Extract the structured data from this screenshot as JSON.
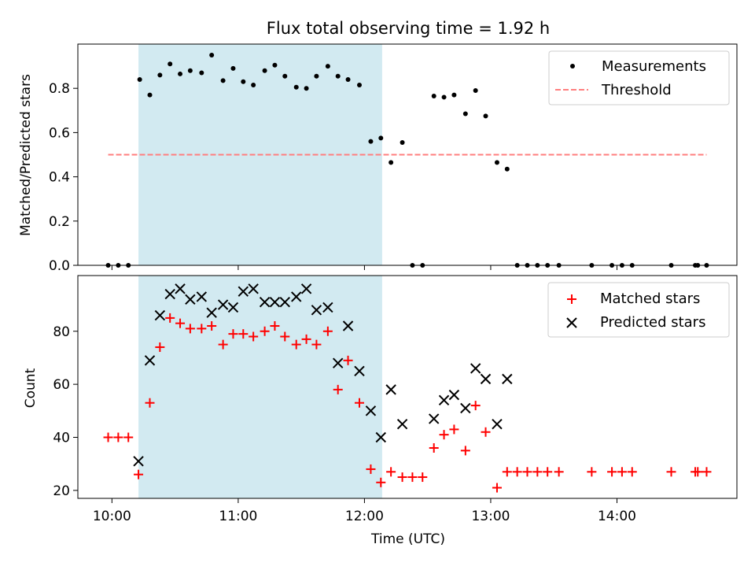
{
  "chart_data": [
    {
      "type": "scatter",
      "title": "Flux total observing time = 1.92 h",
      "ylabel": "Matched/Predicted stars",
      "xlabel": "",
      "ylim": [
        0,
        1.0
      ],
      "yticks": [
        0.0,
        0.2,
        0.4,
        0.6,
        0.8
      ],
      "ytick_labels": [
        "0.0",
        "0.2",
        "0.4",
        "0.6",
        "0.8"
      ],
      "xlim_hours": [
        9.73,
        14.95
      ],
      "xticks_hours": [
        10,
        11,
        12,
        13,
        14
      ],
      "grid": false,
      "legend_placement": "top-right",
      "shaded_interval_hours": [
        10.21,
        12.14
      ],
      "shade_color": "#add8e6",
      "series": [
        {
          "name": "Measurements",
          "marker": "dot",
          "color": "#000000",
          "points": [
            [
              9.97,
              0.0
            ],
            [
              10.05,
              0.0
            ],
            [
              10.13,
              0.0
            ],
            [
              10.22,
              0.84
            ],
            [
              10.3,
              0.77
            ],
            [
              10.38,
              0.86
            ],
            [
              10.46,
              0.91
            ],
            [
              10.54,
              0.865
            ],
            [
              10.62,
              0.88
            ],
            [
              10.71,
              0.87
            ],
            [
              10.79,
              0.95
            ],
            [
              10.88,
              0.835
            ],
            [
              10.96,
              0.89
            ],
            [
              11.04,
              0.83
            ],
            [
              11.12,
              0.815
            ],
            [
              11.21,
              0.88
            ],
            [
              11.29,
              0.905
            ],
            [
              11.37,
              0.855
            ],
            [
              11.46,
              0.805
            ],
            [
              11.54,
              0.8
            ],
            [
              11.62,
              0.855
            ],
            [
              11.71,
              0.9
            ],
            [
              11.79,
              0.855
            ],
            [
              11.87,
              0.84
            ],
            [
              11.96,
              0.815
            ],
            [
              12.05,
              0.56
            ],
            [
              12.13,
              0.575
            ],
            [
              12.21,
              0.465
            ],
            [
              12.3,
              0.555
            ],
            [
              12.38,
              0.0
            ],
            [
              12.46,
              0.0
            ],
            [
              12.55,
              0.765
            ],
            [
              12.63,
              0.76
            ],
            [
              12.71,
              0.77
            ],
            [
              12.8,
              0.685
            ],
            [
              12.88,
              0.79
            ],
            [
              12.96,
              0.675
            ],
            [
              13.05,
              0.465
            ],
            [
              13.13,
              0.435
            ],
            [
              13.21,
              0.0
            ],
            [
              13.29,
              0.0
            ],
            [
              13.37,
              0.0
            ],
            [
              13.45,
              0.0
            ],
            [
              13.54,
              0.0
            ],
            [
              13.8,
              0.0
            ],
            [
              13.96,
              0.0
            ],
            [
              14.04,
              0.0
            ],
            [
              14.12,
              0.0
            ],
            [
              14.43,
              0.0
            ],
            [
              14.62,
              0.0
            ],
            [
              14.64,
              0.0
            ],
            [
              14.71,
              0.0
            ]
          ]
        },
        {
          "name": "Threshold",
          "marker": "dashed-line",
          "color": "#ff7f7f",
          "x_hours": [
            9.97,
            14.71
          ],
          "value": 0.5
        }
      ]
    },
    {
      "type": "scatter",
      "title": "",
      "ylabel": "Count",
      "xlabel": "Time (UTC)",
      "ylim": [
        17,
        101
      ],
      "yticks": [
        20,
        40,
        60,
        80
      ],
      "ytick_labels": [
        "20",
        "40",
        "60",
        "80"
      ],
      "xlim_hours": [
        9.73,
        14.95
      ],
      "xticks_hours": [
        10,
        11,
        12,
        13,
        14
      ],
      "xtick_labels": [
        "10:00",
        "11:00",
        "12:00",
        "13:00",
        "14:00"
      ],
      "grid": false,
      "legend_placement": "top-right",
      "shaded_interval_hours": [
        10.21,
        12.14
      ],
      "shade_color": "#add8e6",
      "series": [
        {
          "name": "Matched stars",
          "marker": "plus",
          "color": "#ff0000",
          "points": [
            [
              9.97,
              40
            ],
            [
              10.05,
              40
            ],
            [
              10.13,
              40
            ],
            [
              10.21,
              26
            ],
            [
              10.3,
              53
            ],
            [
              10.38,
              74
            ],
            [
              10.46,
              85
            ],
            [
              10.54,
              83
            ],
            [
              10.62,
              81
            ],
            [
              10.71,
              81
            ],
            [
              10.79,
              82
            ],
            [
              10.88,
              75
            ],
            [
              10.96,
              79
            ],
            [
              11.04,
              79
            ],
            [
              11.12,
              78
            ],
            [
              11.21,
              80
            ],
            [
              11.29,
              82
            ],
            [
              11.37,
              78
            ],
            [
              11.46,
              75
            ],
            [
              11.54,
              77
            ],
            [
              11.62,
              75
            ],
            [
              11.71,
              80
            ],
            [
              11.79,
              58
            ],
            [
              11.87,
              69
            ],
            [
              11.96,
              53
            ],
            [
              12.05,
              28
            ],
            [
              12.13,
              23
            ],
            [
              12.21,
              27
            ],
            [
              12.3,
              25
            ],
            [
              12.38,
              25
            ],
            [
              12.46,
              25
            ],
            [
              12.55,
              36
            ],
            [
              12.63,
              41
            ],
            [
              12.71,
              43
            ],
            [
              12.8,
              35
            ],
            [
              12.88,
              52
            ],
            [
              12.96,
              42
            ],
            [
              13.05,
              21
            ],
            [
              13.13,
              27
            ],
            [
              13.21,
              27
            ],
            [
              13.29,
              27
            ],
            [
              13.37,
              27
            ],
            [
              13.45,
              27
            ],
            [
              13.54,
              27
            ],
            [
              13.8,
              27
            ],
            [
              13.96,
              27
            ],
            [
              14.04,
              27
            ],
            [
              14.12,
              27
            ],
            [
              14.43,
              27
            ],
            [
              14.62,
              27
            ],
            [
              14.64,
              27
            ],
            [
              14.71,
              27
            ]
          ]
        },
        {
          "name": "Predicted stars",
          "marker": "x",
          "color": "#000000",
          "points": [
            [
              10.21,
              31
            ],
            [
              10.3,
              69
            ],
            [
              10.38,
              86
            ],
            [
              10.46,
              94
            ],
            [
              10.54,
              96
            ],
            [
              10.62,
              92
            ],
            [
              10.71,
              93
            ],
            [
              10.79,
              87
            ],
            [
              10.88,
              90
            ],
            [
              10.96,
              89
            ],
            [
              11.04,
              95
            ],
            [
              11.12,
              96
            ],
            [
              11.21,
              91
            ],
            [
              11.29,
              91
            ],
            [
              11.37,
              91
            ],
            [
              11.46,
              93
            ],
            [
              11.54,
              96
            ],
            [
              11.62,
              88
            ],
            [
              11.71,
              89
            ],
            [
              11.79,
              68
            ],
            [
              11.87,
              82
            ],
            [
              11.96,
              65
            ],
            [
              12.05,
              50
            ],
            [
              12.13,
              40
            ],
            [
              12.21,
              58
            ],
            [
              12.3,
              45
            ],
            [
              12.55,
              47
            ],
            [
              12.63,
              54
            ],
            [
              12.71,
              56
            ],
            [
              12.8,
              51
            ],
            [
              12.88,
              66
            ],
            [
              12.96,
              62
            ],
            [
              13.05,
              45
            ],
            [
              13.13,
              62
            ]
          ]
        }
      ]
    }
  ]
}
